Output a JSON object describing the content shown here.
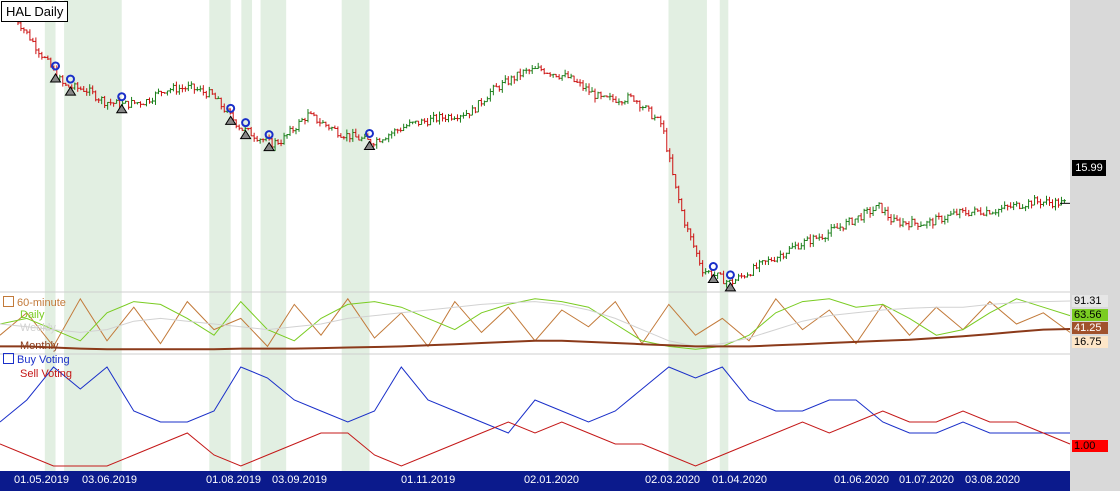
{
  "title": "HAL Daily",
  "last_price": "15.99",
  "colors": {
    "up": "#1a7f1a",
    "down": "#cc1111",
    "shade": "#e2efe2",
    "axis_bg": "#0b1a8c",
    "right_bg": "#d9d9d9",
    "buy": "#1a2fc9",
    "sell": "#c41818",
    "m60": "#c27a3a",
    "daily": "#7acc22",
    "weekly": "#d2d2d2",
    "monthly": "#8b3a1a"
  },
  "x_ticks": [
    "01.05.2019",
    "03.06.2019",
    "01.08.2019",
    "03.09.2019",
    "01.11.2019",
    "02.01.2020",
    "02.03.2020",
    "01.04.2020",
    "01.06.2020",
    "01.07.2020",
    "03.08.2020"
  ],
  "chart_data": [
    {
      "type": "line",
      "name": "price",
      "ylim": [
        11,
        27.5
      ],
      "x": [
        "2019-05-01",
        "2019-05-15",
        "2019-05-24",
        "2019-06-03",
        "2019-06-12",
        "2019-06-20",
        "2019-07-01",
        "2019-07-10",
        "2019-07-22",
        "2019-08-01",
        "2019-08-15",
        "2019-08-29",
        "2019-09-03",
        "2019-09-15",
        "2019-10-01",
        "2019-10-15",
        "2019-11-01",
        "2019-11-15",
        "2019-12-01",
        "2019-12-10",
        "2019-12-25",
        "2020-01-02",
        "2020-01-15",
        "2020-01-31",
        "2020-02-15",
        "2020-02-28",
        "2020-03-05",
        "2020-03-10",
        "2020-03-18",
        "2020-03-31",
        "2020-04-15",
        "2020-05-01",
        "2020-05-15",
        "2020-05-26",
        "2020-06-01",
        "2020-06-09",
        "2020-06-15",
        "2020-07-01",
        "2020-07-15",
        "2020-08-03",
        "2020-08-20",
        "2020-09-04"
      ],
      "y": [
        27,
        24.5,
        22.9,
        22.7,
        22.0,
        21.8,
        22.0,
        22.7,
        22.8,
        22.4,
        20.4,
        19.5,
        19.7,
        21.2,
        20.1,
        19.6,
        20.6,
        21.0,
        21.4,
        22.6,
        23.7,
        23.9,
        23.4,
        22.1,
        22.2,
        20.6,
        17.0,
        14.7,
        12.1,
        11.3,
        12.4,
        13.5,
        14.2,
        14.9,
        15.3,
        15.8,
        14.9,
        14.8,
        15.4,
        15.6,
        16.1,
        15.99
      ],
      "shaded_ranges": [
        [
          "2019-05-15",
          "2019-05-20"
        ],
        [
          "2019-05-24",
          "2019-06-20"
        ],
        [
          "2019-07-31",
          "2019-08-10"
        ],
        [
          "2019-08-15",
          "2019-08-20"
        ],
        [
          "2019-08-24",
          "2019-09-05"
        ],
        [
          "2019-10-01",
          "2019-10-14"
        ],
        [
          "2020-03-02",
          "2020-03-20"
        ],
        [
          "2020-03-26",
          "2020-03-30"
        ]
      ],
      "buy_markers": [
        "2019-05-20",
        "2019-05-27",
        "2019-06-20",
        "2019-08-10",
        "2019-08-17",
        "2019-08-28",
        "2019-10-14",
        "2020-03-23",
        "2020-03-31"
      ]
    },
    {
      "type": "line",
      "name": "oscillators",
      "ylim": [
        0,
        100
      ],
      "series": [
        {
          "name": "60-minute",
          "values": [
            30,
            70,
            10,
            95,
            20,
            80,
            15,
            90,
            40,
            60,
            10,
            85,
            30,
            95,
            25,
            70,
            10,
            90,
            35,
            80,
            20,
            75,
            45,
            90,
            15,
            85,
            30,
            60,
            20,
            95,
            40,
            75,
            15,
            85,
            30,
            80,
            40,
            90,
            50,
            70,
            35
          ]
        },
        {
          "name": "Daily",
          "values": [
            50,
            60,
            40,
            20,
            70,
            90,
            85,
            60,
            30,
            90,
            40,
            20,
            60,
            85,
            90,
            80,
            60,
            40,
            70,
            85,
            95,
            90,
            80,
            50,
            20,
            10,
            5,
            10,
            30,
            70,
            90,
            95,
            80,
            85,
            60,
            30,
            40,
            70,
            95,
            80,
            65
          ]
        },
        {
          "name": "Weekly",
          "values": [
            50,
            45,
            40,
            35,
            40,
            55,
            60,
            55,
            50,
            45,
            40,
            45,
            50,
            60,
            65,
            70,
            75,
            80,
            85,
            88,
            90,
            85,
            75,
            60,
            40,
            20,
            10,
            15,
            25,
            40,
            55,
            65,
            70,
            75,
            78,
            80,
            80,
            85,
            88,
            90,
            91
          ]
        },
        {
          "name": "Monthly",
          "values": [
            10,
            10,
            8,
            6,
            5,
            5,
            5,
            5,
            5,
            6,
            6,
            6,
            7,
            8,
            9,
            10,
            12,
            14,
            16,
            18,
            20,
            20,
            18,
            16,
            14,
            12,
            10,
            10,
            10,
            12,
            14,
            16,
            18,
            20,
            22,
            25,
            28,
            32,
            36,
            40,
            41
          ]
        }
      ],
      "last_values": [
        "91.31",
        "63.56",
        "41.25",
        "16.75"
      ]
    },
    {
      "type": "line",
      "name": "voting",
      "ylim": [
        0,
        10
      ],
      "series": [
        {
          "name": "Buy Voting",
          "values": [
            4,
            6,
            9,
            7,
            9,
            5,
            4,
            4,
            5,
            9,
            8,
            6,
            5,
            4,
            5,
            9,
            6,
            5,
            4,
            3,
            6,
            5,
            4,
            5,
            7,
            9,
            8,
            9,
            6,
            5,
            5,
            6,
            6,
            4,
            3,
            3,
            4,
            3,
            3,
            3,
            3
          ]
        },
        {
          "name": "Sell Voting",
          "values": [
            2,
            1,
            0,
            0,
            0,
            1,
            2,
            3,
            1,
            0,
            1,
            2,
            3,
            3,
            1,
            0,
            1,
            2,
            3,
            4,
            3,
            4,
            3,
            2,
            2,
            1,
            0,
            1,
            2,
            3,
            4,
            3,
            4,
            5,
            4,
            4,
            5,
            4,
            4,
            3,
            2
          ]
        }
      ],
      "last_value": "1.00"
    }
  ]
}
